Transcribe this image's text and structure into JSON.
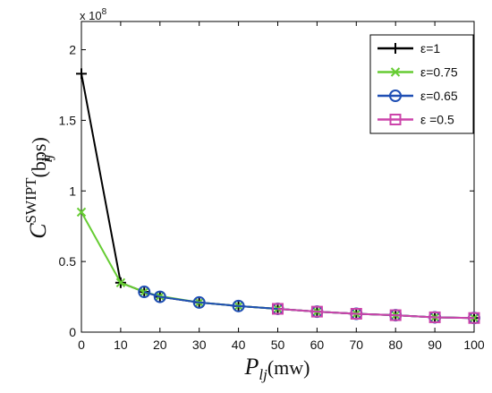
{
  "chart_data": {
    "type": "line",
    "title": "",
    "x_axis": {
      "label_main": "P",
      "label_sub": "lj",
      "label_unit": "(mw)",
      "range": [
        0,
        100
      ],
      "ticks": [
        "0",
        "10",
        "20",
        "30",
        "40",
        "50",
        "60",
        "70",
        "80",
        "90",
        "100"
      ]
    },
    "y_axis": {
      "label_main": "C",
      "label_sup": "SWIPT",
      "label_sub": "ij",
      "label_unit": "(bps)",
      "range": [
        0,
        2.2
      ],
      "ticks": [
        "0",
        "0.5",
        "1",
        "1.5",
        "2"
      ],
      "multiplier_base": "x 10",
      "multiplier_exp": "8"
    },
    "grid": false,
    "legend_position": "top-right",
    "series": [
      {
        "name": "ε=1",
        "color": "#000000",
        "marker": "plus",
        "x": [
          0,
          10,
          16,
          20,
          30,
          40,
          50,
          60,
          70,
          80,
          90,
          100
        ],
        "y": [
          1.83,
          0.35,
          0.285,
          0.25,
          0.21,
          0.185,
          0.165,
          0.145,
          0.13,
          0.12,
          0.105,
          0.1
        ]
      },
      {
        "name": "ε=0.75",
        "color": "#66cc33",
        "marker": "x",
        "x": [
          0,
          10,
          16,
          20,
          30,
          40,
          50,
          60,
          70,
          80,
          90,
          100
        ],
        "y": [
          0.85,
          0.35,
          0.285,
          0.255,
          0.21,
          0.185,
          0.165,
          0.145,
          0.13,
          0.12,
          0.105,
          0.1
        ]
      },
      {
        "name": "ε=0.65",
        "color": "#1f4fb4",
        "marker": "circle",
        "x": [
          16,
          20,
          30,
          40,
          50,
          60,
          70,
          80,
          90,
          100
        ],
        "y": [
          0.285,
          0.25,
          0.21,
          0.185,
          0.165,
          0.145,
          0.13,
          0.12,
          0.105,
          0.1
        ]
      },
      {
        "name": "ε =0.5",
        "color": "#cc44aa",
        "marker": "square",
        "x": [
          50,
          60,
          70,
          80,
          90,
          100
        ],
        "y": [
          0.165,
          0.145,
          0.13,
          0.12,
          0.105,
          0.1
        ]
      }
    ]
  }
}
